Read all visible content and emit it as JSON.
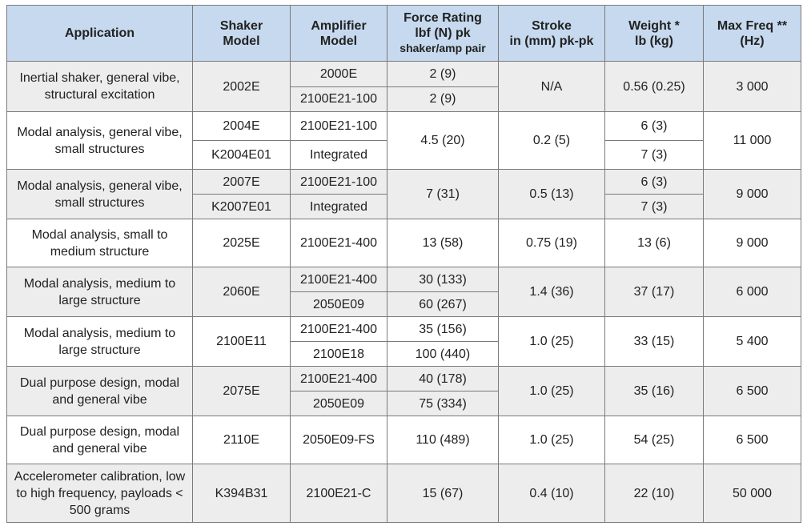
{
  "table": {
    "header": [
      {
        "lines": [
          "Application"
        ]
      },
      {
        "lines": [
          "Shaker",
          "Model"
        ]
      },
      {
        "lines": [
          "Amplifier",
          "Model"
        ]
      },
      {
        "lines": [
          "Force Rating",
          "lbf (N) pk",
          "shaker/amp pair"
        ]
      },
      {
        "lines": [
          "Stroke",
          "in (mm) pk-pk"
        ]
      },
      {
        "lines": [
          "Weight *",
          "lb (kg)"
        ]
      },
      {
        "lines": [
          "Max Freq **",
          "(Hz)"
        ]
      }
    ],
    "groups": [
      {
        "application": "Inertial shaker, general vibe, structural excitation",
        "shaker": [
          "2002E"
        ],
        "amplifier": [
          "2000E",
          "2100E21-100"
        ],
        "force": [
          "2 (9)",
          "2 (9)"
        ],
        "stroke": [
          "N/A"
        ],
        "weight": [
          "0.56 (0.25)"
        ],
        "freq": [
          "3 000"
        ]
      },
      {
        "application": "Modal analysis, general vibe, small structures",
        "shaker": [
          "2004E",
          "K2004E01"
        ],
        "amplifier": [
          "2100E21-100",
          "Integrated"
        ],
        "force": [
          "4.5 (20)"
        ],
        "stroke": [
          "0.2 (5)"
        ],
        "weight": [
          "6 (3)",
          "7 (3)"
        ],
        "freq": [
          "11 000"
        ]
      },
      {
        "application": "Modal analysis, general vibe, small structures",
        "shaker": [
          "2007E",
          "K2007E01"
        ],
        "amplifier": [
          "2100E21-100",
          "Integrated"
        ],
        "force": [
          "7 (31)"
        ],
        "stroke": [
          "0.5 (13)"
        ],
        "weight": [
          "6 (3)",
          "7 (3)"
        ],
        "freq": [
          "9 000"
        ]
      },
      {
        "application": "Modal analysis, small to medium structure",
        "shaker": [
          "2025E"
        ],
        "amplifier": [
          "2100E21-400"
        ],
        "force": [
          "13 (58)"
        ],
        "stroke": [
          "0.75 (19)"
        ],
        "weight": [
          "13 (6)"
        ],
        "freq": [
          "9 000"
        ]
      },
      {
        "application": "Modal analysis, medium to large structure",
        "shaker": [
          "2060E"
        ],
        "amplifier": [
          "2100E21-400",
          "2050E09"
        ],
        "force": [
          "30 (133)",
          "60 (267)"
        ],
        "stroke": [
          "1.4 (36)"
        ],
        "weight": [
          "37 (17)"
        ],
        "freq": [
          "6 000"
        ]
      },
      {
        "application": "Modal analysis, medium to large structure",
        "shaker": [
          "2100E11"
        ],
        "amplifier": [
          "2100E21-400",
          "2100E18"
        ],
        "force": [
          "35 (156)",
          "100 (440)"
        ],
        "stroke": [
          "1.0 (25)"
        ],
        "weight": [
          "33 (15)"
        ],
        "freq": [
          "5 400"
        ]
      },
      {
        "application": "Dual purpose design, modal and general vibe",
        "shaker": [
          "2075E"
        ],
        "amplifier": [
          "2100E21-400",
          "2050E09"
        ],
        "force": [
          "40 (178)",
          "75 (334)"
        ],
        "stroke": [
          "1.0 (25)"
        ],
        "weight": [
          "35 (16)"
        ],
        "freq": [
          "6 500"
        ]
      },
      {
        "application": "Dual purpose design, modal and general vibe",
        "shaker": [
          "2110E"
        ],
        "amplifier": [
          "2050E09-FS"
        ],
        "force": [
          "110 (489)"
        ],
        "stroke": [
          "1.0 (25)"
        ],
        "weight": [
          "54 (25)"
        ],
        "freq": [
          "6 500"
        ]
      },
      {
        "application": "Accelerometer calibration, low to high frequency, payloads < 500 grams",
        "shaker": [
          "K394B31"
        ],
        "amplifier": [
          "2100E21-C"
        ],
        "force": [
          "15 (67)"
        ],
        "stroke": [
          "0.4 (10)"
        ],
        "weight": [
          "22 (10)"
        ],
        "freq": [
          "50 000"
        ]
      }
    ]
  }
}
